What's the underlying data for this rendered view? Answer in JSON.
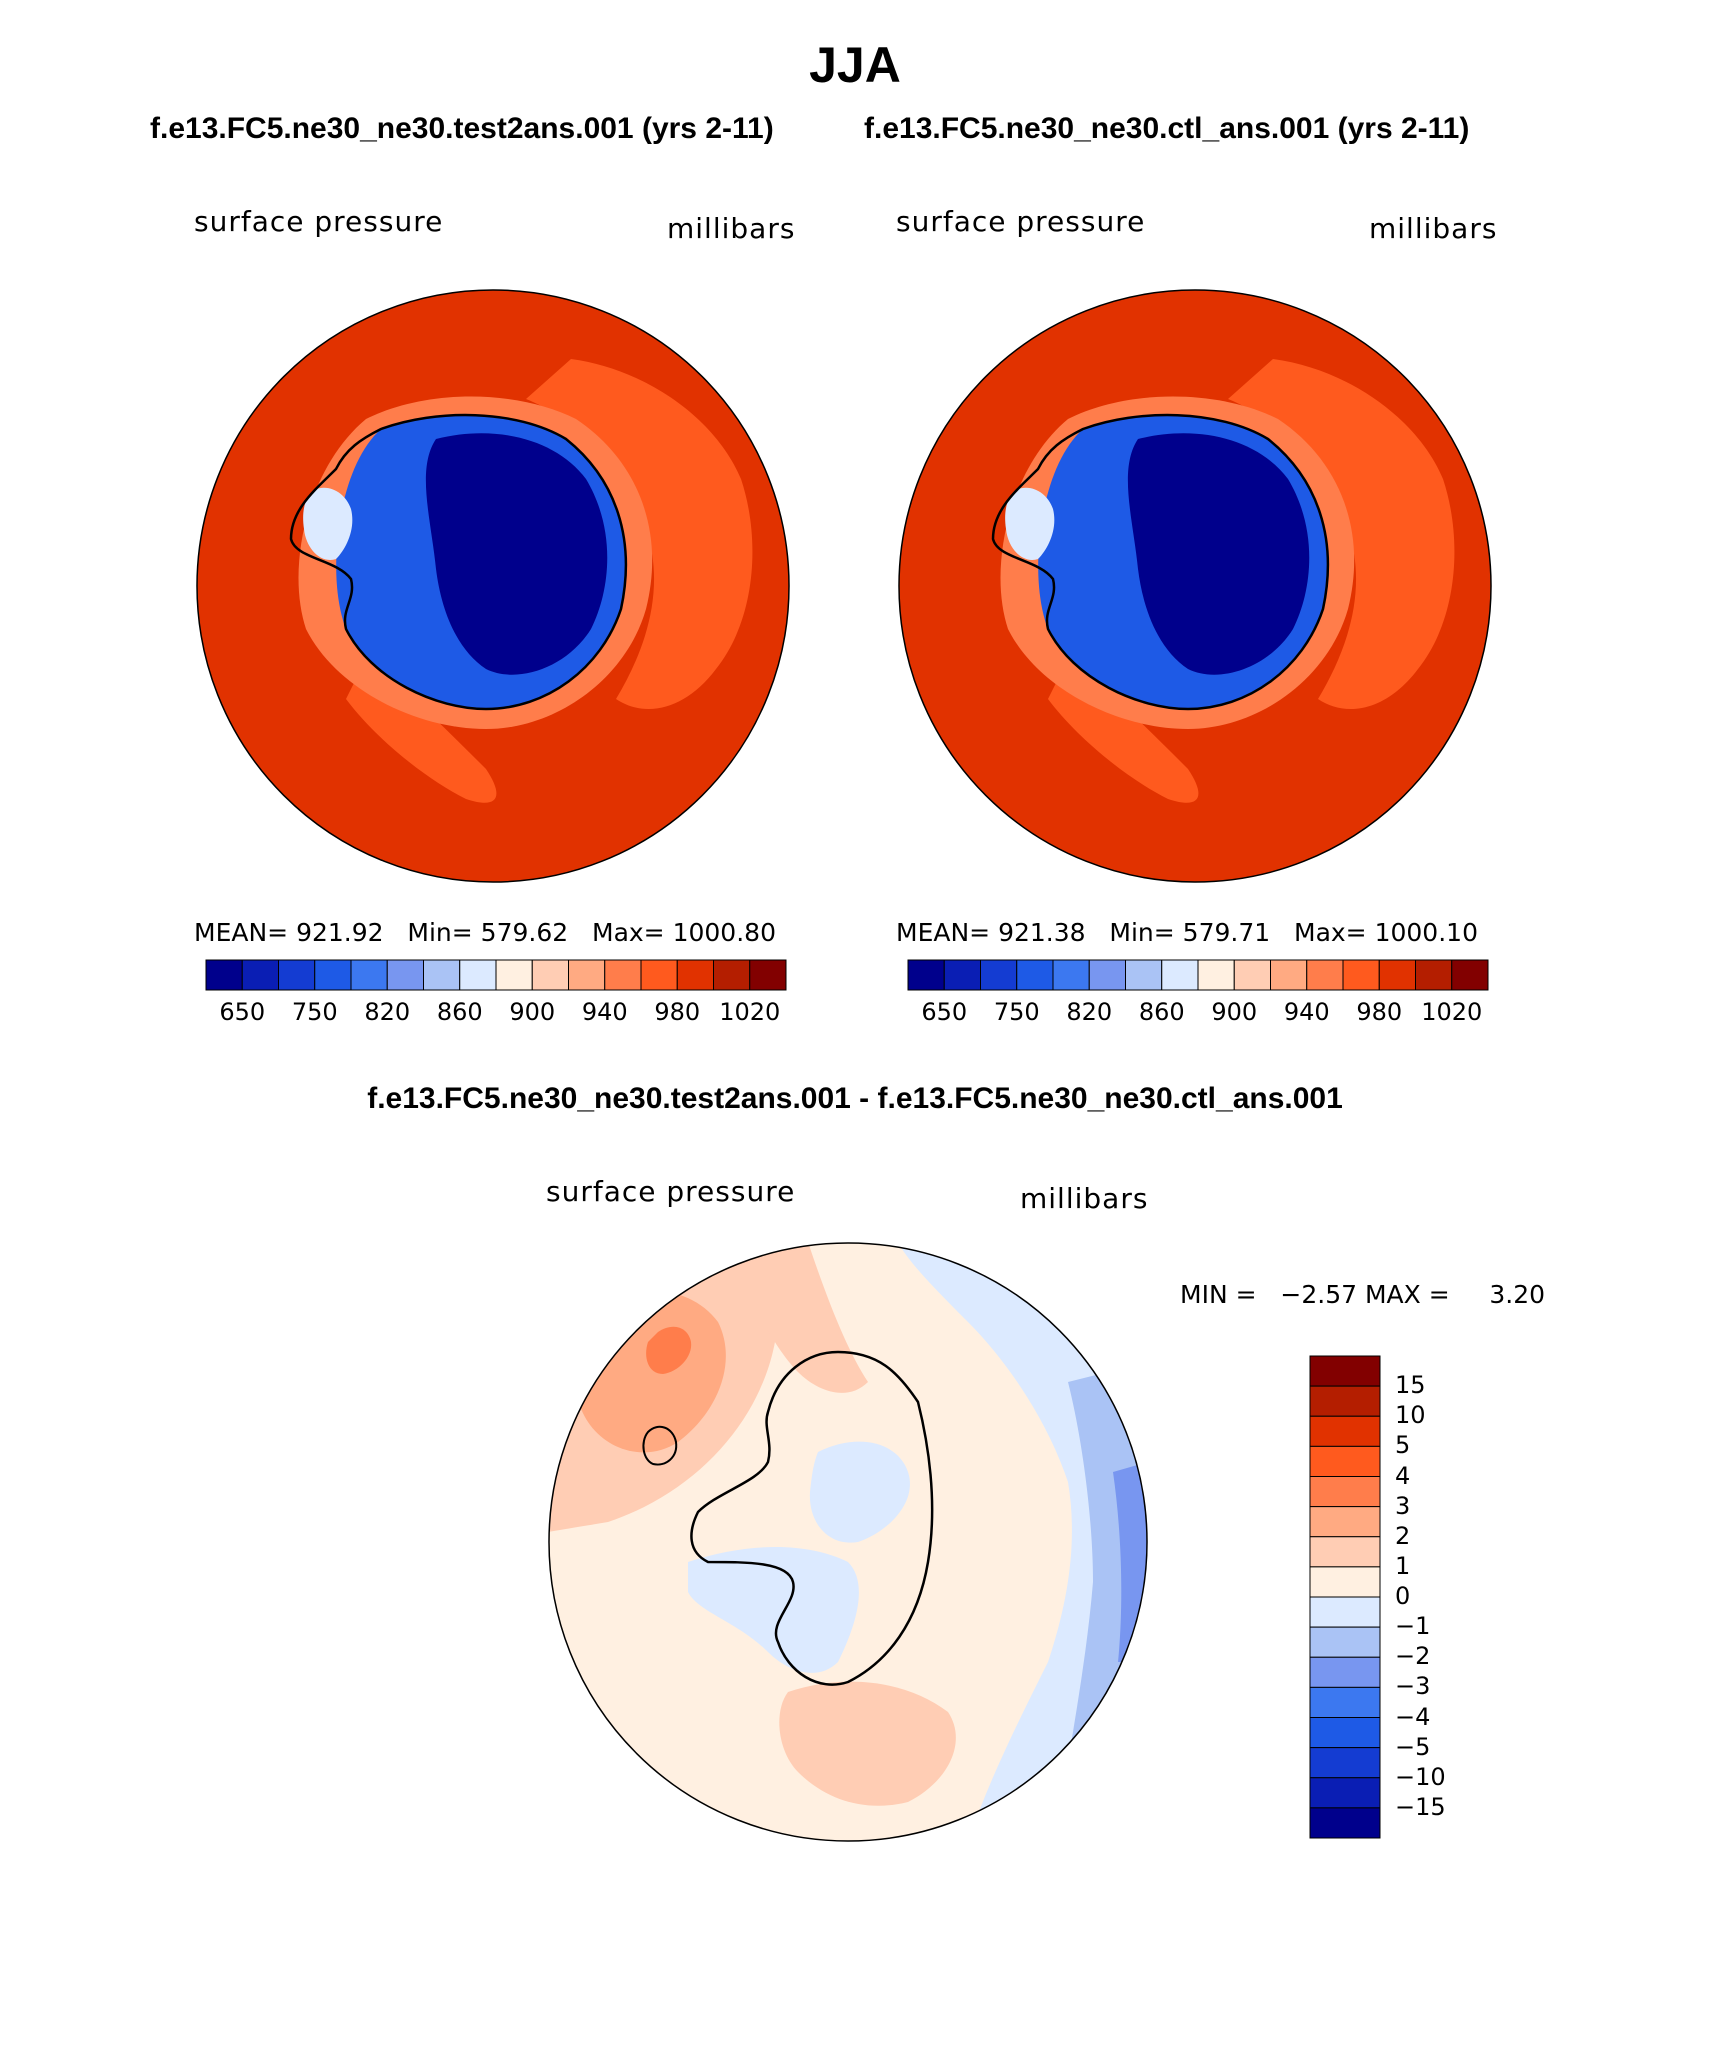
{
  "page": {
    "title": "JJA",
    "top_caption_left": "f.e13.FC5.ne30_ne30.test2ans.001 (yrs 2-11)",
    "top_caption_right": "f.e13.FC5.ne30_ne30.ctl_ans.001 (yrs 2-11)",
    "diff_caption": "f.e13.FC5.ne30_ne30.test2ans.001 - f.e13.FC5.ne30_ne30.ctl_ans.001"
  },
  "panels": [
    {
      "id": "test",
      "variable": "surface pressure",
      "units": "millibars",
      "stats": {
        "mean_label": "MEAN=",
        "mean": "921.92",
        "min_label": "Min=",
        "min": "579.62",
        "max_label": "Max=",
        "max": "1000.80"
      }
    },
    {
      "id": "control",
      "variable": "surface pressure",
      "units": "millibars",
      "stats": {
        "mean_label": "MEAN=",
        "mean": "921.38",
        "min_label": "Min=",
        "min": "579.71",
        "max_label": "Max=",
        "max": "1000.10"
      }
    }
  ],
  "diff_panel": {
    "variable": "surface pressure",
    "units": "millibars",
    "stats": {
      "min_label": "MIN =",
      "min": "−2.57",
      "max_label": "MAX =",
      "max": "3.20"
    }
  },
  "colorbar_top": {
    "tick_labels": [
      "650",
      "750",
      "820",
      "860",
      "900",
      "940",
      "980",
      "1020"
    ],
    "colors": [
      "#00008c",
      "#0a1eb4",
      "#143cd2",
      "#1e5ae6",
      "#3c78f0",
      "#7896f0",
      "#aac3f5",
      "#dceaff",
      "#fff0e1",
      "#ffcdb4",
      "#ffaa82",
      "#ff7d4b",
      "#ff5a1e",
      "#e13200",
      "#b41e00",
      "#820000"
    ]
  },
  "colorbar_diff": {
    "tick_labels": [
      "15",
      "10",
      "5",
      "4",
      "3",
      "2",
      "1",
      "0",
      "−1",
      "−2",
      "−3",
      "−4",
      "−5",
      "−10",
      "−15"
    ],
    "colors_top_to_bottom": [
      "#820000",
      "#b41e00",
      "#e13200",
      "#ff5a1e",
      "#ff7d4b",
      "#ffaa82",
      "#ffcdb4",
      "#fff0e1",
      "#dceaff",
      "#aac3f5",
      "#7896f0",
      "#3c78f0",
      "#1e5ae6",
      "#143cd2",
      "#0a1eb4",
      "#00008c"
    ]
  },
  "map_colors": {
    "ocean_high": "#e13200",
    "ocean_mid": "#ff5a1e",
    "coast_light": "#ff7d4b",
    "plateau_deep": "#00008c",
    "ice_blue": "#1e5ae6",
    "pale_blue": "#dceaff",
    "diff_neutral": "#fff0e1",
    "diff_pos": "#ffcdb4",
    "diff_pos2": "#ffaa82",
    "diff_pos3": "#ff7d4b",
    "diff_neg": "#dceaff",
    "diff_neg2": "#aac3f5",
    "diff_neg3": "#7896f0"
  }
}
